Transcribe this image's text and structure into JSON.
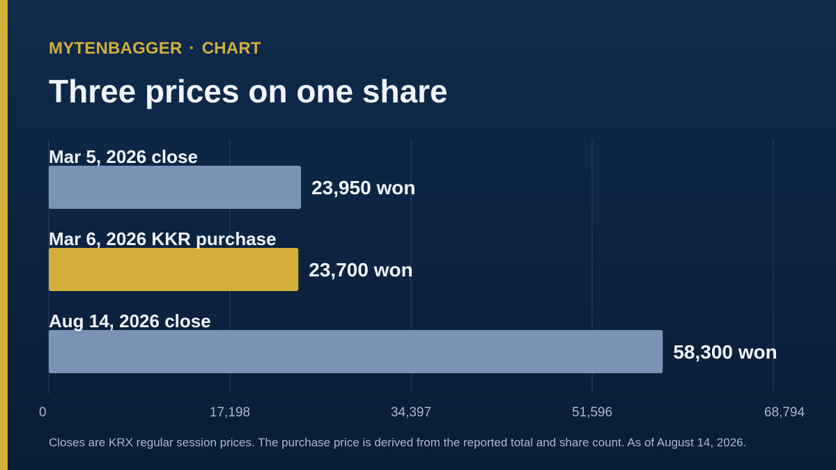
{
  "header": {
    "brand": "MYTENBAGGER",
    "separator": "·",
    "section": "CHART"
  },
  "title": "Three prices on one share",
  "footnote": "Closes are KRX regular session prices. The purchase price is derived from the reported total and share count. As of August 14, 2026.",
  "colors": {
    "accent": "#d3ae3b",
    "bar_default": "#7b93b6",
    "bar_highlight": "#d3ae3b",
    "background": "#0d2342"
  },
  "chart_data": {
    "type": "bar",
    "orientation": "horizontal",
    "title": "Three prices on one share",
    "categories": [
      "Mar 5, 2026 close",
      "Mar 6, 2026 KKR purchase",
      "Aug 14, 2026 close"
    ],
    "values": [
      23950,
      23700,
      58300
    ],
    "value_labels": [
      "23,950 won",
      "23,700 won",
      "58,300 won"
    ],
    "highlight_index": 1,
    "xlim": [
      0,
      68794
    ],
    "xticks": [
      0,
      17198,
      34397,
      51596,
      68794
    ],
    "xtick_labels": [
      "0",
      "17,198",
      "34,397",
      "51,596",
      "68,794"
    ],
    "grid": "vertical"
  }
}
